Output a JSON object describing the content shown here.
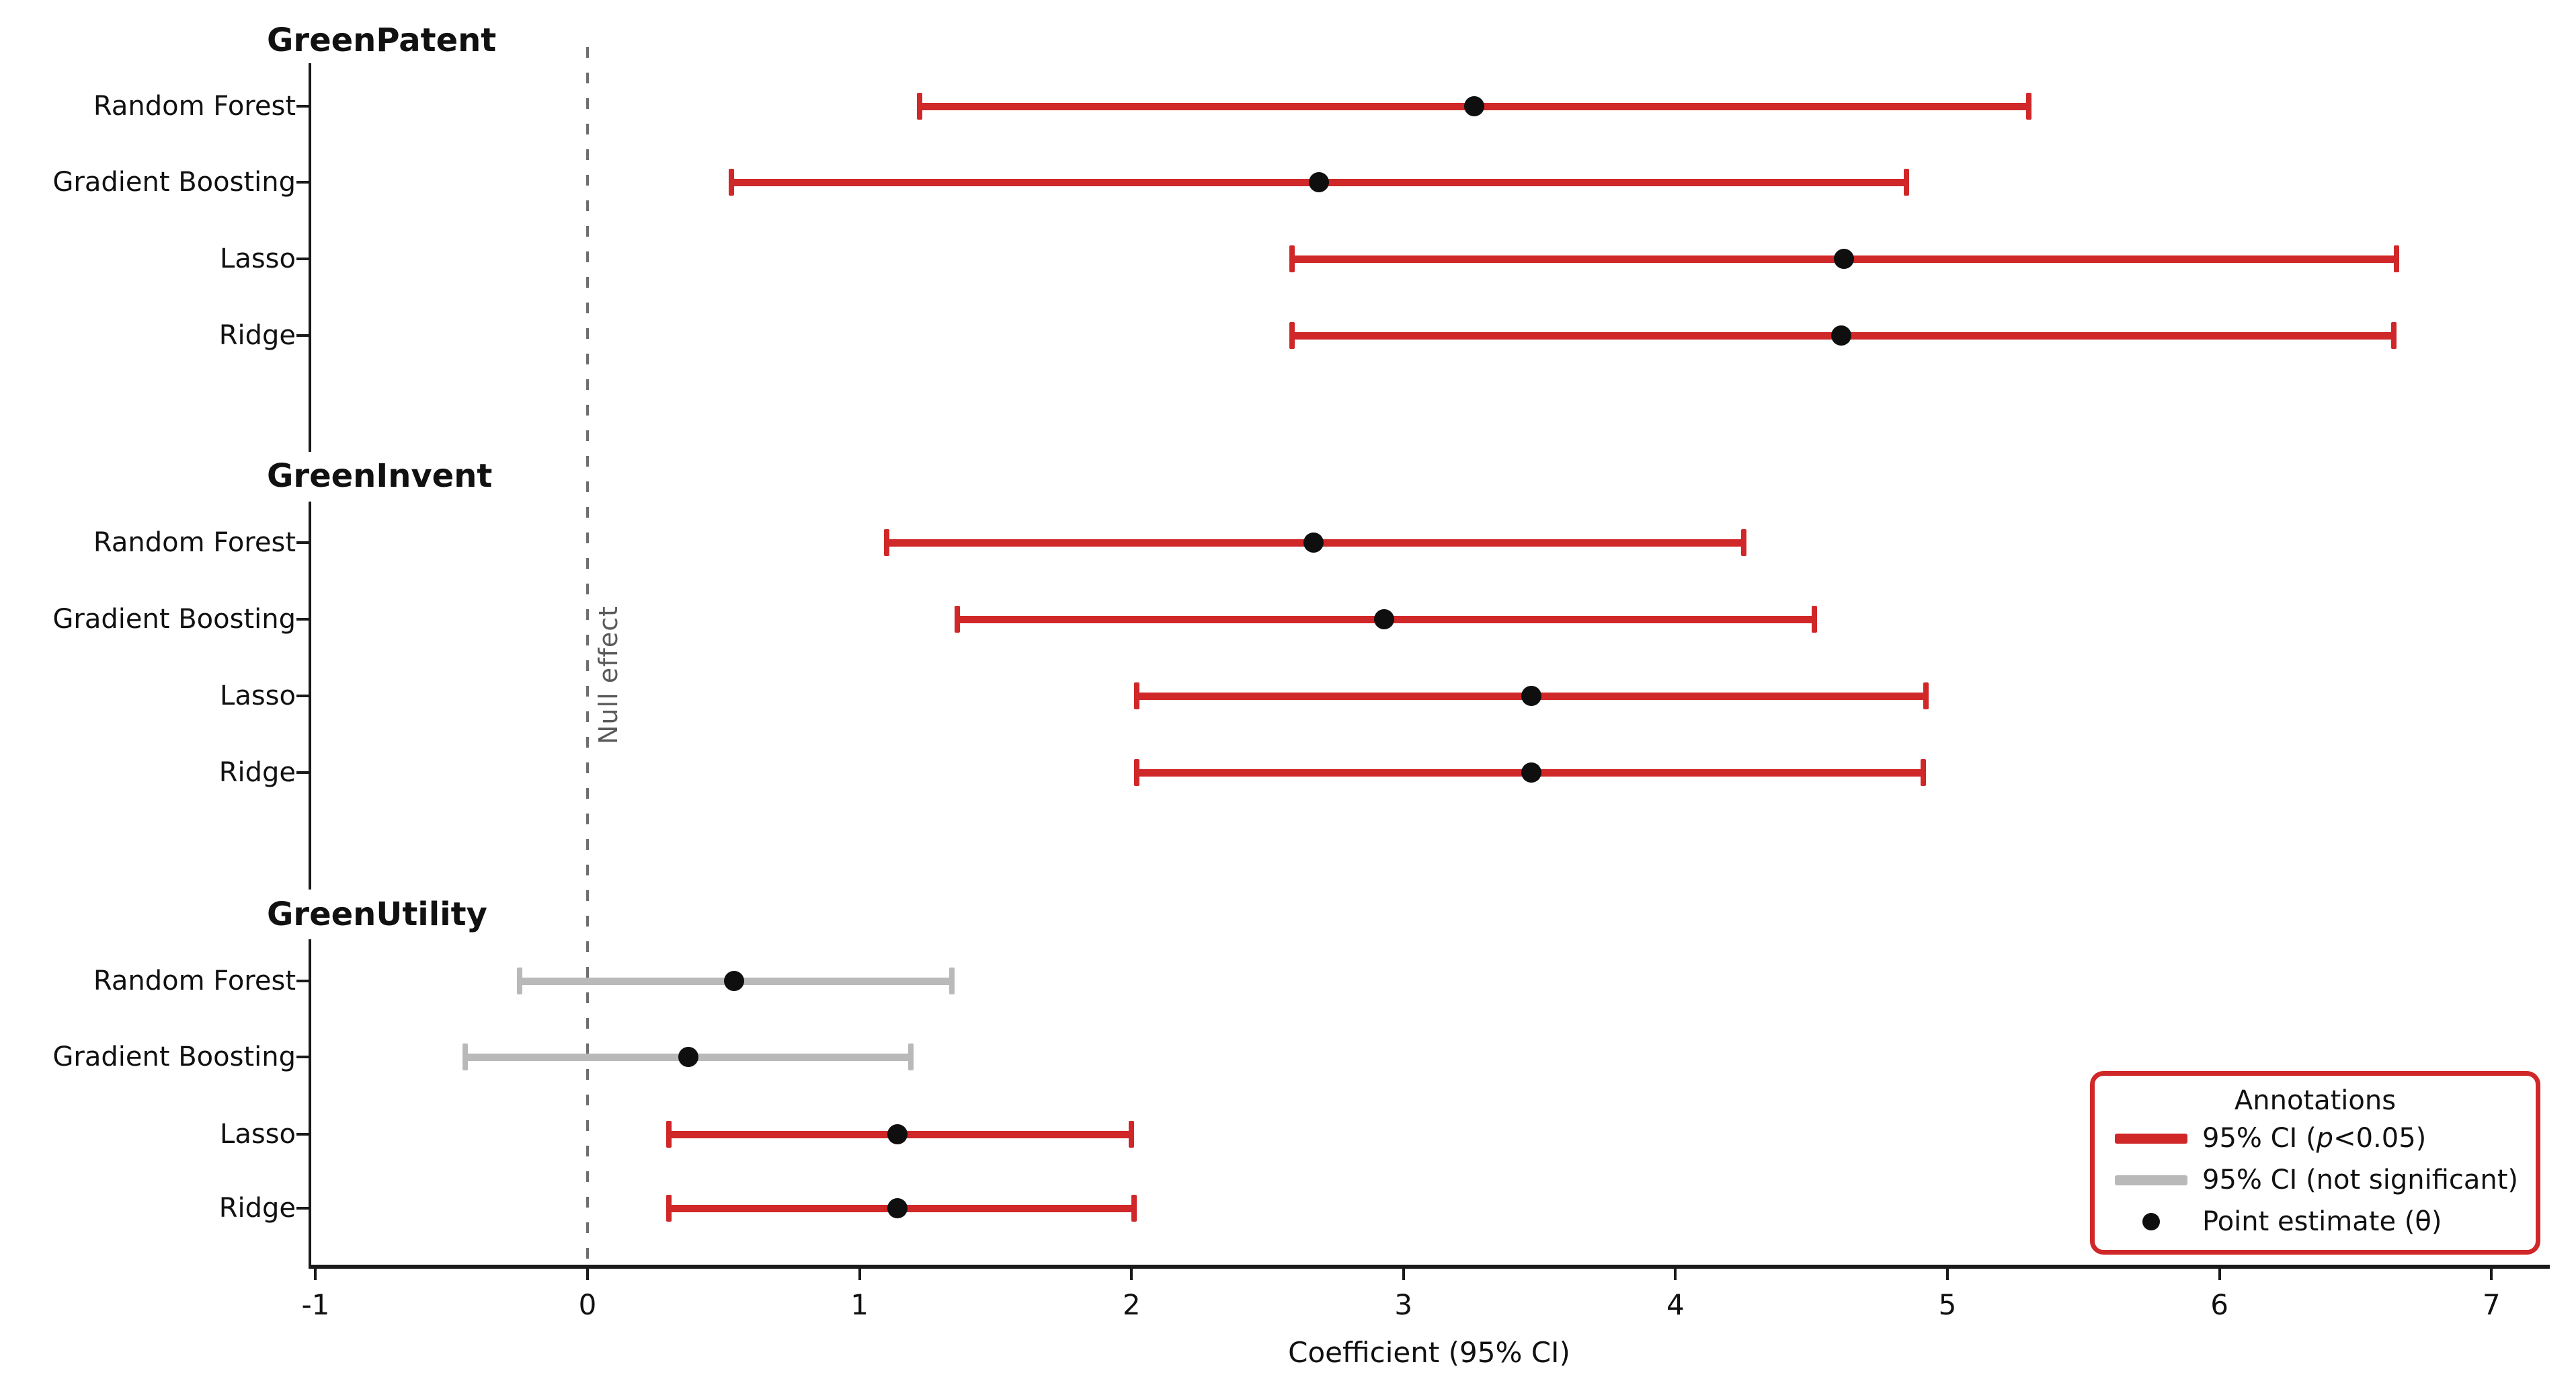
{
  "chart_data": {
    "type": "forest_errorbar",
    "xlabel": "Coefficient (95% CI)",
    "x_ticks": [
      -1,
      0,
      1,
      2,
      3,
      4,
      5,
      6,
      7
    ],
    "xlim": [
      -1.02,
      7.31
    ],
    "grid": false,
    "null_line": {
      "x": 0,
      "label": "Null effect",
      "style": "dashed"
    },
    "groups": [
      {
        "title": "GreenPatent",
        "models": [
          {
            "label": "Random Forest",
            "estimate": 3.26,
            "ci_low": 1.22,
            "ci_high": 5.3,
            "significant": true
          },
          {
            "label": "Gradient Boosting",
            "estimate": 2.69,
            "ci_low": 0.53,
            "ci_high": 4.85,
            "significant": true
          },
          {
            "label": "Lasso",
            "estimate": 4.62,
            "ci_low": 2.59,
            "ci_high": 6.65,
            "significant": true
          },
          {
            "label": "Ridge",
            "estimate": 4.61,
            "ci_low": 2.59,
            "ci_high": 6.64,
            "significant": true
          }
        ]
      },
      {
        "title": "GreenInvent",
        "models": [
          {
            "label": "Random Forest",
            "estimate": 2.67,
            "ci_low": 1.1,
            "ci_high": 4.25,
            "significant": true
          },
          {
            "label": "Gradient Boosting",
            "estimate": 2.93,
            "ci_low": 1.36,
            "ci_high": 4.51,
            "significant": true
          },
          {
            "label": "Lasso",
            "estimate": 3.47,
            "ci_low": 2.02,
            "ci_high": 4.92,
            "significant": true
          },
          {
            "label": "Ridge",
            "estimate": 3.47,
            "ci_low": 2.02,
            "ci_high": 4.91,
            "significant": true
          }
        ]
      },
      {
        "title": "GreenUtility",
        "models": [
          {
            "label": "Random Forest",
            "estimate": 0.54,
            "ci_low": -0.25,
            "ci_high": 1.34,
            "significant": false
          },
          {
            "label": "Gradient Boosting",
            "estimate": 0.37,
            "ci_low": -0.45,
            "ci_high": 1.19,
            "significant": false
          },
          {
            "label": "Lasso",
            "estimate": 1.14,
            "ci_low": 0.3,
            "ci_high": 2.0,
            "significant": true
          },
          {
            "label": "Ridge",
            "estimate": 1.14,
            "ci_low": 0.3,
            "ci_high": 2.01,
            "significant": true
          }
        ]
      }
    ],
    "legend": {
      "title": "Annotations",
      "items": [
        {
          "swatch": "line-significant",
          "prefix": "95% CI (",
          "italic": "p",
          "suffix": "<0.05)"
        },
        {
          "swatch": "line-not-significant",
          "label": "95% CI (not significant)"
        },
        {
          "swatch": "point",
          "label": "Point estimate (θ)"
        }
      ]
    },
    "colors": {
      "significant": "#d02728",
      "not_significant": "#b9b9b9",
      "point": "#0f0f0f",
      "null_line": "#6e6e6e",
      "null_label": "#5a5a5a",
      "legend_border": "#d02728",
      "spine": "#1a1a1a"
    }
  }
}
